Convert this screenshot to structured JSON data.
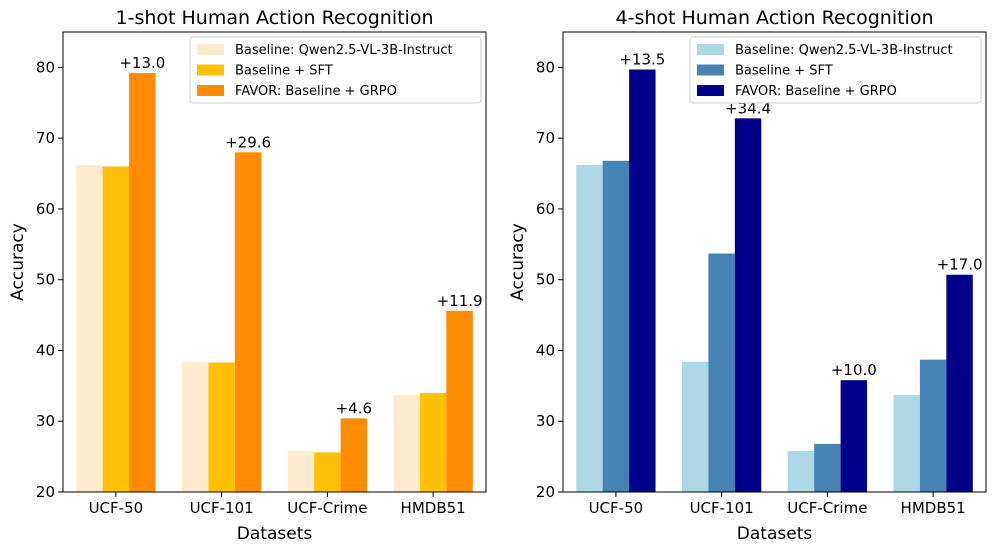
{
  "chart_data": [
    {
      "type": "bar",
      "title": "1-shot Human Action Recognition",
      "xlabel": "Datasets",
      "ylabel": "Accuracy",
      "ylim": [
        20,
        85
      ],
      "yticks": [
        20,
        30,
        40,
        50,
        60,
        70,
        80
      ],
      "categories": [
        "UCF-50",
        "UCF-101",
        "UCF-Crime",
        "HMDB51"
      ],
      "legend_position": "top-right",
      "series": [
        {
          "name": "Baseline: Qwen2.5-VL-3B-Instruct",
          "color": "#fdebd0",
          "values": [
            66.2,
            38.4,
            25.8,
            33.7
          ]
        },
        {
          "name": "Baseline + SFT",
          "color": "#ffc107",
          "values": [
            66.0,
            38.3,
            25.6,
            34.0
          ]
        },
        {
          "name": "FAVOR: Baseline + GRPO",
          "color": "#ff8c00",
          "values": [
            79.2,
            68.0,
            30.4,
            45.6
          ]
        }
      ],
      "annotations": [
        "+13.0",
        "+29.6",
        "+4.6",
        "+11.9"
      ]
    },
    {
      "type": "bar",
      "title": "4-shot Human Action Recognition",
      "xlabel": "Datasets",
      "ylabel": "Accuracy",
      "ylim": [
        20,
        85
      ],
      "yticks": [
        20,
        30,
        40,
        50,
        60,
        70,
        80
      ],
      "categories": [
        "UCF-50",
        "UCF-101",
        "UCF-Crime",
        "HMDB51"
      ],
      "legend_position": "top-right",
      "series": [
        {
          "name": "Baseline: Qwen2.5-VL-3B-Instruct",
          "color": "#add8e6",
          "values": [
            66.2,
            38.4,
            25.8,
            33.7
          ]
        },
        {
          "name": "Baseline + SFT",
          "color": "#4682b4",
          "values": [
            66.8,
            53.7,
            26.8,
            38.7
          ]
        },
        {
          "name": "FAVOR: Baseline + GRPO",
          "color": "#00008b",
          "values": [
            79.7,
            72.8,
            35.8,
            50.7
          ]
        }
      ],
      "annotations": [
        "+13.5",
        "+34.4",
        "+10.0",
        "+17.0"
      ]
    }
  ]
}
